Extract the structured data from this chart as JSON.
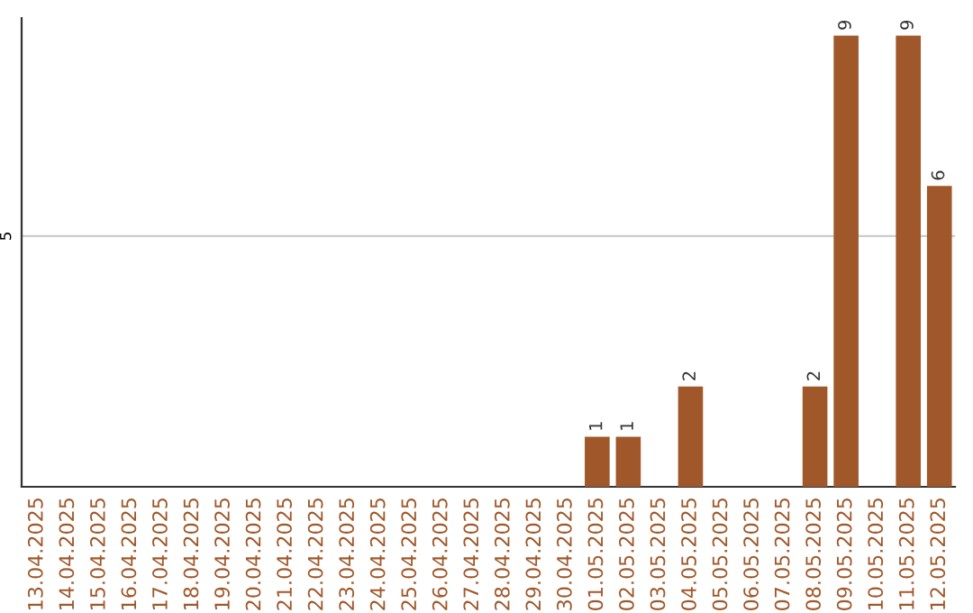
{
  "chart_data": {
    "type": "bar",
    "categories": [
      "13.04.2025",
      "14.04.2025",
      "15.04.2025",
      "16.04.2025",
      "17.04.2025",
      "18.04.2025",
      "19.04.2025",
      "20.04.2025",
      "21.04.2025",
      "22.04.2025",
      "23.04.2025",
      "24.04.2025",
      "25.04.2025",
      "26.04.2025",
      "27.04.2025",
      "28.04.2025",
      "29.04.2025",
      "30.04.2025",
      "01.05.2025",
      "02.05.2025",
      "03.05.2025",
      "04.05.2025",
      "05.05.2025",
      "06.05.2025",
      "07.05.2025",
      "08.05.2025",
      "09.05.2025",
      "10.05.2025",
      "11.05.2025",
      "12.05.2025"
    ],
    "values": [
      null,
      null,
      null,
      null,
      null,
      null,
      null,
      null,
      null,
      null,
      null,
      null,
      null,
      null,
      null,
      null,
      null,
      null,
      1,
      1,
      null,
      2,
      null,
      null,
      null,
      2,
      9,
      null,
      9,
      6
    ],
    "data_labels": true,
    "color": "#a0582a",
    "ylim": [
      0,
      9.35
    ],
    "ref_lines": [
      {
        "axis": "y",
        "value": 5,
        "label": "5",
        "color": "#cccccc"
      }
    ],
    "legend": false
  }
}
